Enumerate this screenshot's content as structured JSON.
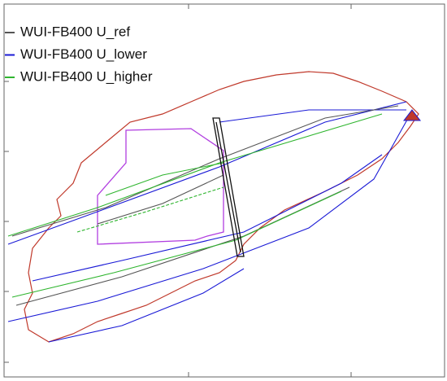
{
  "legend": [
    {
      "label": "WUI-FB400 U_ref",
      "color": "#555555"
    },
    {
      "label": "WUI-FB400 U_lower",
      "color": "#1a1ad6"
    },
    {
      "label": "WUI-FB400 U_higher",
      "color": "#2fb52f"
    }
  ]
}
